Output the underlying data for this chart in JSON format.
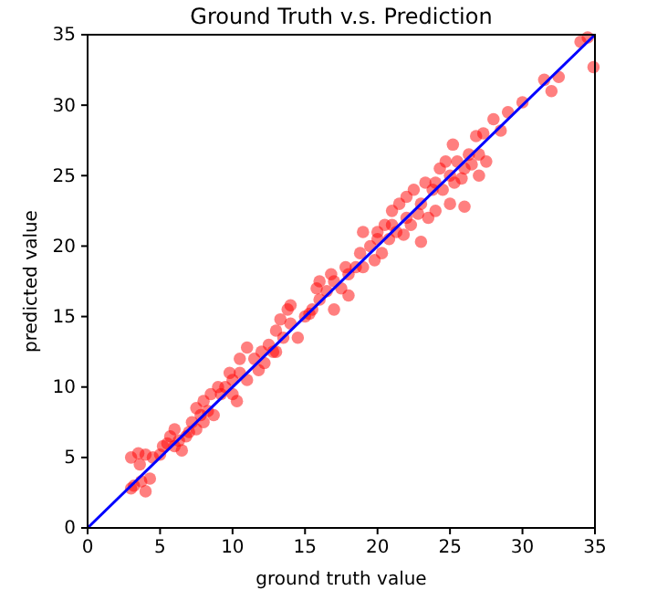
{
  "chart_data": {
    "type": "scatter",
    "title": "Ground Truth v.s. Prediction",
    "xlabel": "ground truth value",
    "ylabel": "predicted value",
    "xlim": [
      0,
      35
    ],
    "ylim": [
      0,
      35
    ],
    "xticks": [
      0,
      5,
      10,
      15,
      20,
      25,
      30,
      35
    ],
    "yticks": [
      0,
      5,
      10,
      15,
      20,
      25,
      30,
      35
    ],
    "grid": false,
    "marker": "circle",
    "series": [
      {
        "color": "#ff0000",
        "x": [
          3,
          3,
          3.2,
          3.5,
          3.6,
          3.7,
          4,
          4,
          4.3,
          4.5,
          5,
          5.2,
          5.5,
          5.7,
          6,
          6,
          6.3,
          6.5,
          6.8,
          7,
          7.2,
          7.5,
          7.5,
          7.8,
          8,
          8,
          8.3,
          8.5,
          8.7,
          9,
          9.2,
          9.5,
          9.8,
          10,
          10,
          10.3,
          10.5,
          10.5,
          11,
          11,
          11.5,
          11.8,
          12,
          12.2,
          12.5,
          12.8,
          13,
          13,
          13.3,
          13.5,
          13.8,
          14,
          14,
          14.5,
          15,
          15.3,
          15.5,
          15.8,
          16,
          16,
          16.5,
          16.8,
          17,
          17,
          17.5,
          17.8,
          18,
          18,
          18.5,
          18.8,
          19,
          19,
          19.5,
          19.8,
          20,
          20,
          20.3,
          20.5,
          20.8,
          21,
          21,
          21.3,
          21.5,
          21.8,
          22,
          22,
          22.3,
          22.5,
          22.8,
          23,
          23,
          23.3,
          23.5,
          23.8,
          24,
          24,
          24.3,
          24.5,
          24.7,
          25,
          25,
          25.2,
          25.3,
          25.5,
          25.8,
          26,
          26,
          26.3,
          26.5,
          26.8,
          27,
          27,
          27.3,
          27.5,
          28,
          28.5,
          29,
          30,
          31.5,
          32,
          32.5,
          34,
          34.5,
          34.9
        ],
        "values": [
          5,
          2.8,
          3,
          5.3,
          4.5,
          3.3,
          5.2,
          2.6,
          3.5,
          5,
          5.2,
          5.8,
          6,
          6.5,
          7,
          5.8,
          6.2,
          5.5,
          6.5,
          6.8,
          7.5,
          8.5,
          7,
          8,
          9,
          7.5,
          8.3,
          9.5,
          8,
          10,
          9.5,
          10,
          11,
          10.5,
          9.5,
          9,
          11,
          12,
          10.5,
          12.8,
          12,
          11.2,
          12.5,
          11.7,
          13,
          12.5,
          14,
          12.5,
          14.8,
          13.5,
          15.5,
          14.5,
          15.8,
          13.5,
          15,
          15.2,
          15.5,
          17,
          16.2,
          17.5,
          16.8,
          18,
          15.5,
          17.5,
          17,
          18.5,
          18,
          16.5,
          18.5,
          19.5,
          21,
          18.5,
          20,
          19,
          20.5,
          21,
          19.5,
          21.5,
          20.5,
          21.5,
          22.5,
          21,
          23,
          20.8,
          22,
          23.5,
          21.5,
          24,
          22.3,
          23,
          20.3,
          24.5,
          22,
          24,
          24.5,
          22.5,
          25.5,
          24,
          26,
          25,
          23,
          27.2,
          24.5,
          26,
          24.8,
          25.5,
          22.8,
          26.5,
          25.8,
          27.8,
          26.5,
          25,
          28,
          26,
          29,
          28.2,
          29.5,
          30.2,
          31.8,
          31,
          32,
          34.5,
          34.8,
          32.7
        ]
      },
      {
        "type": "line",
        "color": "#0000ff",
        "x": [
          0,
          35
        ],
        "values": [
          0,
          35
        ],
        "marker": "none",
        "line_style": "solid"
      }
    ]
  }
}
